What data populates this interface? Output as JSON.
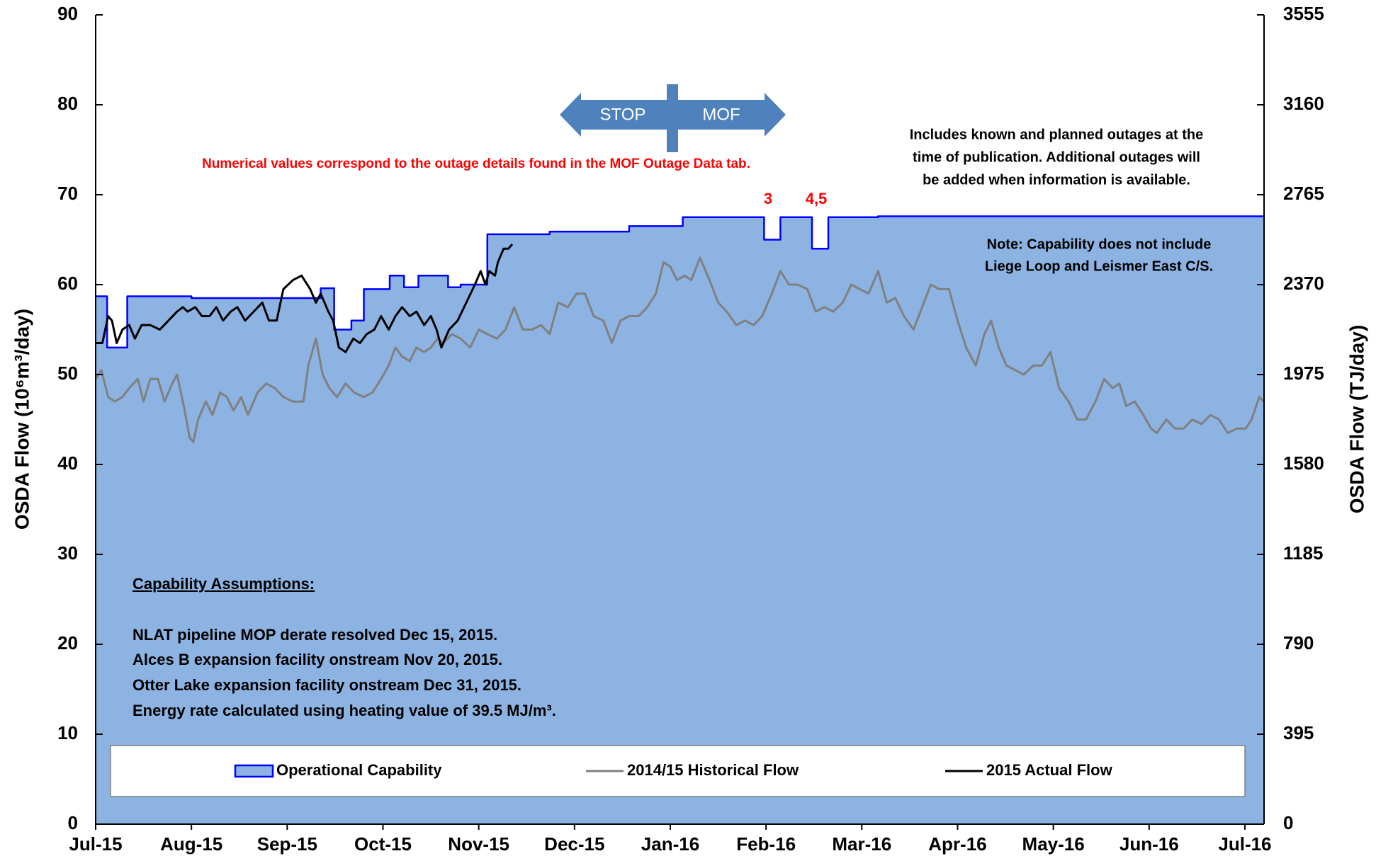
{
  "chart_data": {
    "type": "line",
    "y_axis_label": "OSDA Flow (10⁶m³/day)",
    "y2_axis_label": "OSDA Flow (TJ/day)",
    "xlim": [
      0,
      12.2
    ],
    "xticks": [
      {
        "value": 0,
        "label": "Jul-15"
      },
      {
        "value": 1,
        "label": "Aug-15"
      },
      {
        "value": 2,
        "label": "Sep-15"
      },
      {
        "value": 3,
        "label": "Oct-15"
      },
      {
        "value": 4,
        "label": "Nov-15"
      },
      {
        "value": 5,
        "label": "Dec-15"
      },
      {
        "value": 6,
        "label": "Jan-16"
      },
      {
        "value": 7,
        "label": "Feb-16"
      },
      {
        "value": 8,
        "label": "Mar-16"
      },
      {
        "value": 9,
        "label": "Apr-16"
      },
      {
        "value": 10,
        "label": "May-16"
      },
      {
        "value": 11,
        "label": "Jun-16"
      },
      {
        "value": 12,
        "label": "Jul-16"
      }
    ],
    "ylim": [
      0,
      90
    ],
    "yticks": [
      0,
      10,
      20,
      30,
      40,
      50,
      60,
      70,
      80,
      90
    ],
    "y2lim": [
      0,
      3555
    ],
    "y2ticks": [
      0,
      395,
      790,
      1185,
      1580,
      1975,
      2370,
      2765,
      3160,
      3555
    ],
    "grid": false,
    "series": [
      {
        "name": "Operational Capability",
        "color": "#0000ff",
        "fill": "#8db3e2",
        "x": [
          0,
          0.12,
          0.12,
          0.33,
          0.33,
          1.0,
          1.0,
          2.35,
          2.35,
          2.49,
          2.49,
          2.67,
          2.67,
          2.8,
          2.8,
          3.07,
          3.07,
          3.22,
          3.22,
          3.37,
          3.37,
          3.68,
          3.68,
          3.81,
          3.81,
          4.09,
          4.09,
          4.74,
          4.74,
          5.57,
          5.57,
          6.13,
          6.13,
          6.98,
          6.98,
          7.15,
          7.15,
          7.48,
          7.48,
          7.65,
          7.65,
          8.17,
          8.17,
          12.2
        ],
        "values": [
          58.7,
          58.7,
          53,
          53,
          58.7,
          58.7,
          58.5,
          58.5,
          59.6,
          59.6,
          55,
          55,
          56,
          56,
          59.5,
          59.5,
          61,
          61,
          59.7,
          59.7,
          61,
          61,
          59.7,
          59.7,
          60,
          60,
          65.6,
          65.6,
          65.9,
          65.9,
          66.5,
          66.5,
          67.5,
          67.5,
          65,
          65,
          67.5,
          67.5,
          64,
          64,
          67.5,
          67.5,
          67.6,
          67.6
        ]
      },
      {
        "name": "2014/15 Historical Flow",
        "color": "#808080",
        "x": [
          0,
          0.06,
          0.13,
          0.2,
          0.28,
          0.35,
          0.44,
          0.5,
          0.57,
          0.65,
          0.72,
          0.8,
          0.85,
          0.93,
          0.98,
          1.02,
          1.07,
          1.15,
          1.22,
          1.3,
          1.37,
          1.44,
          1.52,
          1.59,
          1.69,
          1.78,
          1.87,
          1.96,
          2.06,
          2.17,
          2.22,
          2.3,
          2.37,
          2.44,
          2.52,
          2.61,
          2.7,
          2.8,
          2.89,
          2.98,
          3.06,
          3.13,
          3.2,
          3.28,
          3.35,
          3.43,
          3.5,
          3.57,
          3.63,
          3.72,
          3.81,
          3.91,
          4,
          4.09,
          4.19,
          4.28,
          4.37,
          4.46,
          4.56,
          4.65,
          4.74,
          4.83,
          4.93,
          5.02,
          5.11,
          5.2,
          5.3,
          5.39,
          5.48,
          5.57,
          5.67,
          5.76,
          5.85,
          5.93,
          6,
          6.07,
          6.15,
          6.22,
          6.31,
          6.41,
          6.5,
          6.59,
          6.69,
          6.78,
          6.87,
          6.96,
          7.06,
          7.15,
          7.24,
          7.33,
          7.43,
          7.52,
          7.61,
          7.7,
          7.8,
          7.89,
          7.98,
          8.07,
          8.17,
          8.26,
          8.35,
          8.44,
          8.54,
          8.63,
          8.72,
          8.81,
          8.91,
          9,
          9.09,
          9.19,
          9.28,
          9.35,
          9.43,
          9.51,
          9.6,
          9.69,
          9.79,
          9.88,
          9.97,
          10.06,
          10.16,
          10.25,
          10.34,
          10.44,
          10.53,
          10.62,
          10.69,
          10.76,
          10.85,
          10.94,
          11.02,
          11.08,
          11.18,
          11.27,
          11.36,
          11.45,
          11.55,
          11.64,
          11.73,
          11.82,
          11.92,
          12.01,
          12.07,
          12.15,
          12.2
        ],
        "values": [
          49.5,
          50.5,
          47.5,
          47,
          47.5,
          48.5,
          49.5,
          47,
          49.5,
          49.5,
          47,
          49,
          50,
          46,
          43,
          42.5,
          45,
          47,
          45.5,
          48,
          47.5,
          46,
          47.5,
          45.5,
          48,
          49,
          48.5,
          47.5,
          47,
          47,
          51,
          54,
          50,
          48.5,
          47.5,
          49,
          48,
          47.5,
          48,
          49.5,
          51,
          53,
          52,
          51.5,
          53,
          52.5,
          53,
          54,
          53.5,
          54.5,
          54,
          53,
          55,
          54.5,
          54,
          55,
          57.5,
          55,
          55,
          55.5,
          54.5,
          58,
          57.5,
          59,
          59,
          56.5,
          56,
          53.5,
          56,
          56.5,
          56.5,
          57.5,
          59,
          62.5,
          62,
          60.5,
          61,
          60.5,
          63,
          60.5,
          58,
          57,
          55.5,
          56,
          55.5,
          56.5,
          59,
          61.5,
          60,
          60,
          59.5,
          57,
          57.5,
          57,
          58,
          60,
          59.5,
          59,
          61.5,
          58,
          58.5,
          56.5,
          55,
          57.5,
          60,
          59.5,
          59.5,
          56,
          53,
          51,
          54.5,
          56,
          53,
          51,
          50.5,
          50,
          51,
          51,
          52.5,
          48.5,
          47,
          45,
          45,
          47,
          49.5,
          48.5,
          49,
          46.5,
          47,
          45.5,
          44,
          43.5,
          45,
          44,
          44,
          45,
          44.5,
          45.5,
          45,
          43.5,
          44,
          44,
          45,
          47.5,
          47
        ]
      },
      {
        "name": "2015 Actual Flow",
        "color": "#000000",
        "x": [
          0,
          0.07,
          0.13,
          0.17,
          0.22,
          0.28,
          0.35,
          0.41,
          0.48,
          0.57,
          0.67,
          0.76,
          0.85,
          0.91,
          0.96,
          1.04,
          1.11,
          1.19,
          1.26,
          1.33,
          1.41,
          1.48,
          1.56,
          1.65,
          1.74,
          1.81,
          1.89,
          1.96,
          2.06,
          2.15,
          2.24,
          2.3,
          2.35,
          2.43,
          2.48,
          2.54,
          2.61,
          2.69,
          2.76,
          2.83,
          2.91,
          2.98,
          3.06,
          3.13,
          3.2,
          3.28,
          3.35,
          3.43,
          3.5,
          3.56,
          3.61,
          3.69,
          3.78,
          3.87,
          3.96,
          4.02,
          4.07,
          4.11,
          4.17,
          4.2,
          4.26,
          4.31,
          4.35
        ],
        "values": [
          53.5,
          53.5,
          56.5,
          56,
          53.5,
          55,
          55.5,
          54,
          55.5,
          55.5,
          55,
          56,
          57,
          57.5,
          57,
          57.5,
          56.5,
          56.5,
          57.5,
          56,
          57,
          57.5,
          56,
          57,
          58,
          56,
          56,
          59.5,
          60.5,
          61,
          59.5,
          58,
          59,
          57,
          56,
          53,
          52.5,
          54,
          53.5,
          54.5,
          55,
          56.5,
          55,
          56.5,
          57.5,
          56.5,
          57,
          55.5,
          56.5,
          55,
          53,
          55,
          56,
          58,
          60,
          61.5,
          60,
          61.5,
          61,
          62.5,
          64,
          64,
          64.5
        ]
      }
    ],
    "annotations": [
      "3",
      "4,5"
    ],
    "note_red": "Numerical values correspond to the outage details found in the MOF Outage Data tab.",
    "note_outages": [
      "Includes known and planned outages at the",
      "time of publication.  Additional outages will",
      "be added when information is available."
    ],
    "note_capability": [
      "Note:  Capability does not include",
      "Liege Loop and Leismer East C/S."
    ],
    "assumptions_heading": "Capability Assumptions:",
    "assumptions": [
      "NLAT pipeline MOP derate resolved Dec 15, 2015.",
      "Alces B expansion facility onstream Nov 20, 2015.",
      "Otter Lake expansion facility onstream Dec  31, 2015.",
      "Energy rate calculated using heating value of 39.5 MJ/m³."
    ],
    "arrow_labels": [
      "STOP",
      "MOF"
    ]
  }
}
